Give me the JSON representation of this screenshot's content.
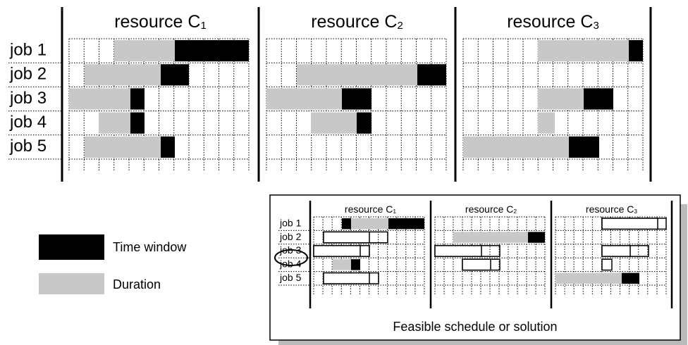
{
  "panel": {
    "resources": [
      {
        "name": "resource C",
        "index": "1"
      },
      {
        "name": "resource C",
        "index": "2"
      },
      {
        "name": "resource C",
        "index": "3"
      }
    ],
    "jobs": [
      "job 1",
      "job 2",
      "job 3",
      "job 4",
      "job 5"
    ]
  },
  "legend": {
    "time_window": "Time window",
    "duration": "Duration"
  },
  "inset": {
    "resources": [
      {
        "name": "resource C",
        "index": "1"
      },
      {
        "name": "resource C",
        "index": "2"
      },
      {
        "name": "resource C",
        "index": "3"
      }
    ],
    "jobs": [
      "job 1",
      "job 2",
      "job 3",
      "job 4",
      "job 5"
    ],
    "caption": "Feasible schedule or solution"
  }
}
